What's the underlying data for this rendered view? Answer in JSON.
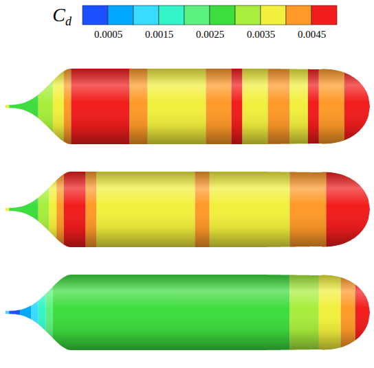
{
  "chart_data": {
    "type": "contour",
    "colorbar_label": "Cd",
    "colorbar": {
      "range": [
        0,
        0.005
      ],
      "ticks": [
        0.0005,
        0.0015,
        0.0025,
        0.0035,
        0.0045
      ],
      "levels": [
        0,
        0.0005,
        0.001,
        0.0015,
        0.002,
        0.0025,
        0.003,
        0.0035,
        0.004,
        0.0045,
        0.005
      ],
      "colors": [
        "#1a50ff",
        "#00a8ff",
        "#38dcff",
        "#34f5c8",
        "#5cf080",
        "#3ddd3d",
        "#a8ee3c",
        "#f2f03c",
        "#ff9a28",
        "#f21c1c"
      ]
    },
    "bodies": [
      {
        "bins": [
          0,
          0.01,
          0.09,
          0.13,
          0.16,
          0.18,
          0.34,
          0.39,
          0.55,
          0.62,
          0.65,
          0.72,
          0.78,
          0.83,
          0.86,
          0.93,
          1
        ],
        "values": [
          0.0038,
          0.0028,
          0.0033,
          0.0038,
          0.0043,
          0.0048,
          0.0043,
          0.0038,
          0.0043,
          0.0047,
          0.0038,
          0.0042,
          0.0037,
          0.0046,
          0.0043,
          0.0048
        ]
      },
      {
        "bins": [
          0,
          0.01,
          0.09,
          0.12,
          0.14,
          0.16,
          0.22,
          0.25,
          0.52,
          0.56,
          0.78,
          0.88,
          1
        ],
        "values": [
          0.0038,
          0.0028,
          0.0033,
          0.0038,
          0.0043,
          0.0047,
          0.0043,
          0.0038,
          0.0042,
          0.0038,
          0.0043,
          0.0048
        ]
      },
      {
        "bins": [
          0,
          0.01,
          0.04,
          0.07,
          0.09,
          0.11,
          0.13,
          0.78,
          0.86,
          0.92,
          0.96,
          1
        ],
        "values": [
          0.0013,
          0.0003,
          0.0008,
          0.0013,
          0.0018,
          0.0023,
          0.0027,
          0.0032,
          0.0037,
          0.0042,
          0.0046
        ]
      }
    ]
  }
}
